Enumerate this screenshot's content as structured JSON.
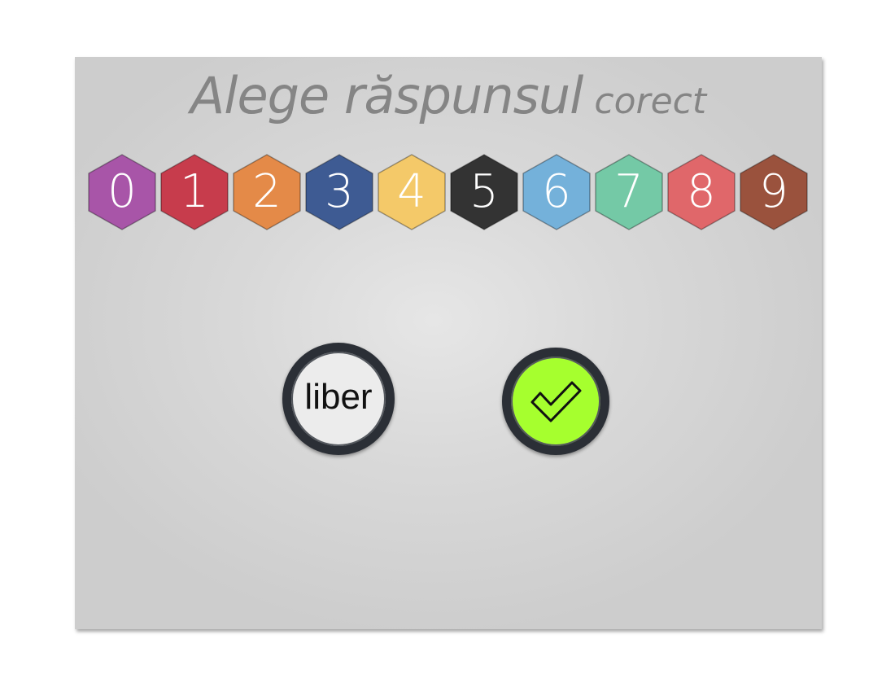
{
  "title": {
    "main": "Alege răspunsul",
    "suffix": "corect"
  },
  "digits": [
    {
      "label": "0",
      "color": "#a855a8"
    },
    {
      "label": "1",
      "color": "#c73c4c"
    },
    {
      "label": "2",
      "color": "#e48a48"
    },
    {
      "label": "3",
      "color": "#3e5b93"
    },
    {
      "label": "4",
      "color": "#f4c969"
    },
    {
      "label": "5",
      "color": "#333333"
    },
    {
      "label": "6",
      "color": "#74b1da"
    },
    {
      "label": "7",
      "color": "#74c9a6"
    },
    {
      "label": "8",
      "color": "#e0676a"
    },
    {
      "label": "9",
      "color": "#9a523d"
    }
  ],
  "buttons": {
    "free_label": "liber",
    "confirm_icon": "checkmark-icon",
    "confirm_color": "#a6ff2e"
  }
}
